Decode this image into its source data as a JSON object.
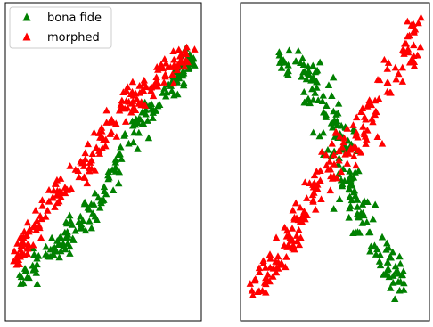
{
  "colors": {
    "bona_fide": "#008000",
    "morphed": "#ff0000",
    "frame": "#000000"
  },
  "legend": {
    "placement": "upper-left",
    "entries": [
      "bona fide",
      "morphed"
    ]
  },
  "chart_data": [
    {
      "type": "scatter",
      "marker": "triangle",
      "xlim": [
        0,
        100
      ],
      "ylim": [
        0,
        100
      ],
      "grid": false,
      "ticks": false,
      "legend": {
        "placement": "upper-left"
      },
      "series": [
        {
          "name": "bona fide",
          "color": "#008000",
          "band": [
            [
              3,
              11,
              2
            ],
            [
              10,
              15,
              2.5
            ],
            [
              20,
              20,
              2.5
            ],
            [
              30,
              25,
              3
            ],
            [
              40,
              31,
              3
            ],
            [
              50,
              39,
              3
            ],
            [
              60,
              54,
              3
            ],
            [
              70,
              63,
              3
            ],
            [
              80,
              71,
              3
            ],
            [
              89,
              76,
              3
            ],
            [
              94,
              81,
              2.5
            ],
            [
              97,
              83,
              2
            ]
          ],
          "count": 190,
          "seed": 11
        },
        {
          "name": "morphed",
          "color": "#ff0000",
          "band": [
            [
              3,
              17,
              2
            ],
            [
              10,
              26,
              2.5
            ],
            [
              20,
              34,
              3
            ],
            [
              30,
              42,
              3
            ],
            [
              40,
              48,
              3
            ],
            [
              50,
              57,
              3
            ],
            [
              60,
              66,
              3
            ],
            [
              70,
              72,
              3
            ],
            [
              80,
              77,
              3
            ],
            [
              90,
              81,
              2.5
            ],
            [
              97,
              85,
              2
            ]
          ],
          "count": 200,
          "seed": 23
        }
      ]
    },
    {
      "type": "scatter",
      "marker": "triangle",
      "xlim": [
        0,
        100
      ],
      "ylim": [
        0,
        100
      ],
      "grid": false,
      "ticks": false,
      "series": [
        {
          "name": "bona fide",
          "color": "#008000",
          "band": [
            [
              80,
              12,
              3
            ],
            [
              84,
              14,
              5
            ],
            [
              77,
              20,
              5
            ],
            [
              70,
              26,
              5
            ],
            [
              64,
              32,
              5
            ],
            [
              60,
              38,
              5
            ],
            [
              56,
              45,
              5
            ],
            [
              53,
              52,
              5
            ],
            [
              51,
              58,
              6
            ],
            [
              46,
              65,
              7
            ],
            [
              40,
              74,
              6
            ],
            [
              30,
              80,
              4
            ],
            [
              20,
              82,
              3
            ]
          ],
          "count": 190,
          "seed": 37
        },
        {
          "name": "morphed",
          "color": "#ff0000",
          "band": [
            [
              3,
              7,
              2
            ],
            [
              10,
              12,
              3
            ],
            [
              20,
              21,
              4
            ],
            [
              30,
              30,
              4
            ],
            [
              40,
              41,
              4
            ],
            [
              50,
              50,
              5
            ],
            [
              60,
              57,
              5
            ],
            [
              70,
              66,
              5
            ],
            [
              80,
              74,
              5
            ],
            [
              90,
              84,
              4
            ],
            [
              95,
              94,
              2
            ]
          ],
          "count": 200,
          "seed": 53
        }
      ]
    }
  ]
}
